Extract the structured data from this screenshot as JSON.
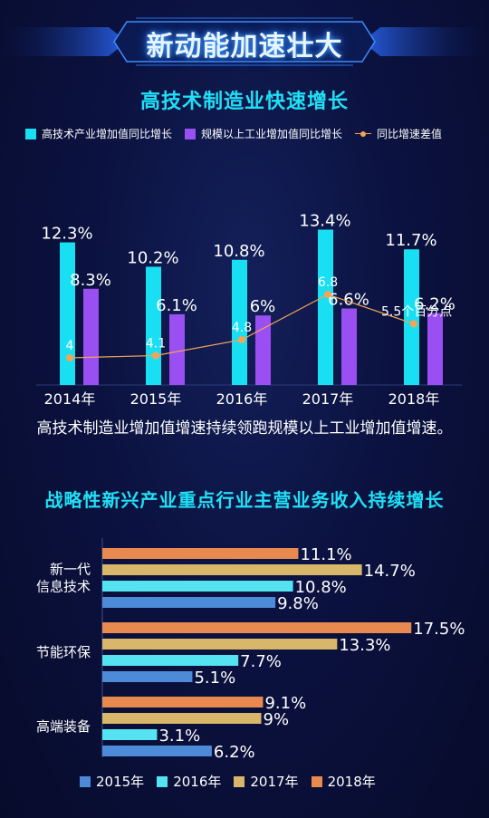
{
  "banner": {
    "title": "新动能加速壮大"
  },
  "colors": {
    "cyan": "#18dff2",
    "purple": "#9a4ff2",
    "orange": "#f5a455",
    "steel": "#4d8bd9",
    "sky": "#55e3f2",
    "gold": "#d8b66a",
    "amber": "#e88a50"
  },
  "chart_data": [
    {
      "type": "bar",
      "title": "高技术制造业快速增长",
      "categories": [
        "2014年",
        "2015年",
        "2016年",
        "2017年",
        "2018年"
      ],
      "series": [
        {
          "name": "高技术产业增加值同比增长",
          "values": [
            12.3,
            10.2,
            10.8,
            13.4,
            11.7
          ],
          "labels": [
            "12.3%",
            "10.2%",
            "10.8%",
            "13.4%",
            "11.7%"
          ]
        },
        {
          "name": "规模以上工业增加值同比增长",
          "values": [
            8.3,
            6.1,
            6,
            6.6,
            6.2
          ],
          "labels": [
            "8.3%",
            "6.1%",
            "6%",
            "6.6%",
            "6.2%"
          ]
        },
        {
          "name": "同比增速差值",
          "type": "line",
          "values": [
            4,
            4.1,
            4.8,
            6.8,
            5.5
          ],
          "labels": [
            "4",
            "4.1",
            "4.8",
            "6.8",
            "5.5个百分点"
          ]
        }
      ],
      "legend": "top",
      "grid": false
    },
    {
      "type": "bar",
      "orientation": "horizontal",
      "title": "战略性新兴产业重点行业主营业务收入持续增长",
      "categories": [
        {
          "lines": [
            "新一代",
            "信息技术"
          ]
        },
        {
          "lines": [
            "节能环保"
          ]
        },
        {
          "lines": [
            "高端装备"
          ]
        }
      ],
      "series": [
        {
          "name": "2015年",
          "values": [
            9.8,
            5.1,
            6.2
          ],
          "labels": [
            "9.8%",
            "5.1%",
            "6.2%"
          ]
        },
        {
          "name": "2016年",
          "values": [
            10.8,
            7.7,
            3.1
          ],
          "labels": [
            "10.8%",
            "7.7%",
            "3.1%"
          ]
        },
        {
          "name": "2017年",
          "values": [
            14.7,
            13.3,
            9
          ],
          "labels": [
            "14.7%",
            "13.3%",
            "9%"
          ]
        },
        {
          "name": "2018年",
          "values": [
            11.1,
            17.5,
            9.1
          ],
          "labels": [
            "11.1%",
            "17.5%",
            "9.1%"
          ]
        }
      ],
      "legend": "bottom",
      "grid": false
    }
  ],
  "caption": "高技术制造业增加值增速持续领跑规模以上工业增加值增速。"
}
